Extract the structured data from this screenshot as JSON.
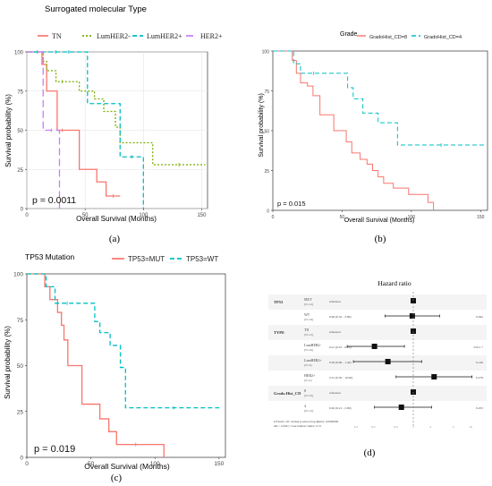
{
  "panels": [
    {
      "letter": "(a)",
      "legend_title": "Surrogated molecular Type",
      "ylabel": "Survival probability (%)",
      "xlabel": "Overall Survival (Months)",
      "p_value": "p = 0.0011",
      "x_ticks": [
        "0",
        "50",
        "100",
        "150"
      ],
      "y_ticks": [
        "0",
        "25",
        "50",
        "75",
        "100"
      ]
    },
    {
      "letter": "(b)",
      "legend_title": "Grade",
      "ylabel": "Survival probability (%)",
      "xlabel": "Overall Survival (Months)",
      "p_value": "p = 0.015",
      "x_ticks": [
        "0",
        "50",
        "100",
        "150"
      ],
      "y_ticks": [
        "0",
        "25",
        "50",
        "75",
        "100"
      ]
    },
    {
      "letter": "(c)",
      "legend_title": "TP53 Mutation",
      "ylabel": "Survival probability (%)",
      "xlabel": "Overall Survival (Months)",
      "p_value": "p = 0.019",
      "x_ticks": [
        "0",
        "50",
        "100",
        "150"
      ],
      "y_ticks": [
        "0",
        "25",
        "50",
        "75",
        "100"
      ]
    },
    {
      "letter": "(d)",
      "title": "Hazard ratio"
    }
  ],
  "chart_data": [
    {
      "type": "line",
      "subtype": "kaplan-meier",
      "legend_title": "Surrogated molecular Type",
      "xlabel": "Overall Survival (Months)",
      "ylabel": "Survival probability (%)",
      "xlim": [
        0,
        155
      ],
      "ylim": [
        0,
        100
      ],
      "grid": true,
      "legend_placement": "top",
      "annotation": "p = 0.0011",
      "series": [
        {
          "name": "TN",
          "color": "#f8766d",
          "dash": "solid",
          "x": [
            0,
            13,
            17,
            26,
            35,
            45,
            60,
            68,
            80
          ],
          "y": [
            100,
            92,
            75,
            50,
            50,
            25,
            17,
            8,
            8
          ]
        },
        {
          "name": "LumHER2-",
          "color": "#7cae00",
          "dash": "dotted",
          "x": [
            0,
            14,
            17,
            25,
            36,
            45,
            58,
            66,
            76,
            80,
            108,
            153
          ],
          "y": [
            100,
            94,
            88,
            81,
            81,
            75,
            70,
            62,
            52,
            42,
            28,
            28
          ]
        },
        {
          "name": "LumHER2+",
          "color": "#00bfc4",
          "dash": "dashed",
          "x": [
            0,
            18,
            32,
            40,
            52,
            80,
            100,
            100
          ],
          "y": [
            100,
            100,
            100,
            100,
            67,
            33,
            33,
            0
          ]
        },
        {
          "name": "HER2+",
          "color": "#c77cff",
          "dash": "longdash",
          "x": [
            0,
            14,
            28,
            28
          ],
          "y": [
            100,
            50,
            50,
            0
          ]
        }
      ]
    },
    {
      "type": "line",
      "subtype": "kaplan-meier",
      "legend_title": "Grade",
      "xlabel": "Overall Survival (Months)",
      "ylabel": "Survival probability (%)",
      "xlim": [
        0,
        155
      ],
      "ylim": [
        0,
        100
      ],
      "grid": false,
      "legend_placement": "top",
      "annotation": "p = 0.015",
      "series": [
        {
          "name": "GradoHist_CD=8",
          "color": "#f8766d",
          "dash": "solid",
          "x": [
            0,
            14,
            17,
            20,
            25,
            29,
            34,
            44,
            53,
            57,
            63,
            68,
            72,
            76,
            80,
            87,
            98,
            112,
            116
          ],
          "y": [
            100,
            94,
            86,
            80,
            78,
            72,
            60,
            50,
            43,
            36,
            32,
            29,
            25,
            21,
            17,
            14,
            10,
            5,
            0
          ]
        },
        {
          "name": "GradoHist_CD=4",
          "color": "#00bfc4",
          "dash": "dashed",
          "x": [
            0,
            15,
            20,
            39,
            54,
            58,
            65,
            76,
            90,
            153
          ],
          "y": [
            100,
            92,
            86,
            86,
            77,
            70,
            61,
            55,
            41,
            41
          ]
        }
      ]
    },
    {
      "type": "line",
      "subtype": "kaplan-meier",
      "legend_title": "TP53 Mutation",
      "xlabel": "Overall Survival (Months)",
      "ylabel": "Survival probability (%)",
      "xlim": [
        0,
        155
      ],
      "ylim": [
        0,
        100
      ],
      "grid": false,
      "legend_placement": "top",
      "annotation": "p = 0.019",
      "series": [
        {
          "name": "TP53=MUT",
          "color": "#f8766d",
          "dash": "solid",
          "x": [
            0,
            14,
            18,
            24,
            27,
            29,
            32,
            43,
            57,
            64,
            70,
            100,
            107
          ],
          "y": [
            100,
            93,
            86,
            79,
            72,
            64,
            50,
            29,
            21,
            14,
            7,
            7,
            0
          ]
        },
        {
          "name": "TP53=WT",
          "color": "#00bfc4",
          "dash": "dashed",
          "x": [
            0,
            15,
            22,
            41,
            53,
            57,
            65,
            73,
            77,
            152
          ],
          "y": [
            100,
            93,
            84,
            84,
            74,
            68,
            61,
            49,
            27,
            27
          ]
        }
      ]
    },
    {
      "type": "scatter",
      "subtype": "forest-plot",
      "title": "Hazard ratio",
      "rows": [
        {
          "variable": "TP53",
          "level": "MUT",
          "n": "(N=14)",
          "estimate": "reference",
          "hr": 1.0,
          "ci": null,
          "p": ""
        },
        {
          "variable": "",
          "level": "WT",
          "n": "(N=19)",
          "estimate": "0.96 (0.32 - 2.89)",
          "hr": 0.96,
          "ci": [
            0.32,
            2.89
          ],
          "p": "0.942"
        },
        {
          "variable": "TYPE",
          "level": "TN",
          "n": "(N=12)",
          "estimate": "reference",
          "hr": 1.0,
          "ci": null,
          "p": ""
        },
        {
          "variable": "",
          "level": "LumHER2-",
          "n": "(N=16)",
          "estimate": "0.21 (0.07 - 0.70)",
          "hr": 0.21,
          "ci": [
            0.07,
            0.7
          ],
          "p": "0.011 *"
        },
        {
          "variable": "",
          "level": "LumHER2+",
          "n": "(N=6)",
          "estimate": "0.36 (0.09 - 1.40)",
          "hr": 0.36,
          "ci": [
            0.09,
            1.4
          ],
          "p": "0.140"
        },
        {
          "variable": "",
          "level": "HER2+",
          "n": "(N=2)",
          "estimate": "2.31 (0.50 - 10.62)",
          "hr": 2.31,
          "ci": [
            0.5,
            10.62
          ],
          "p": "0.279"
        },
        {
          "variable": "Grado.Hist_CD",
          "level": "8",
          "n": "(N=19)",
          "estimate": "reference",
          "hr": 1.0,
          "ci": null,
          "p": ""
        },
        {
          "variable": "",
          "level": "4",
          "n": "(N=14)",
          "estimate": "0.62 (0.21 - 2.09)",
          "hr": 0.62,
          "ci": [
            0.21,
            2.09
          ],
          "p": "0.455"
        }
      ],
      "x_ticks": [
        "0.1",
        "0.2",
        "0.5",
        "1",
        "2",
        "5",
        "10"
      ],
      "footnotes": [
        "# Events: 20; Global p-value (Log-Rank): 0.0066066",
        "AIC: 129.81; Concordance Index: 0.72"
      ]
    }
  ]
}
